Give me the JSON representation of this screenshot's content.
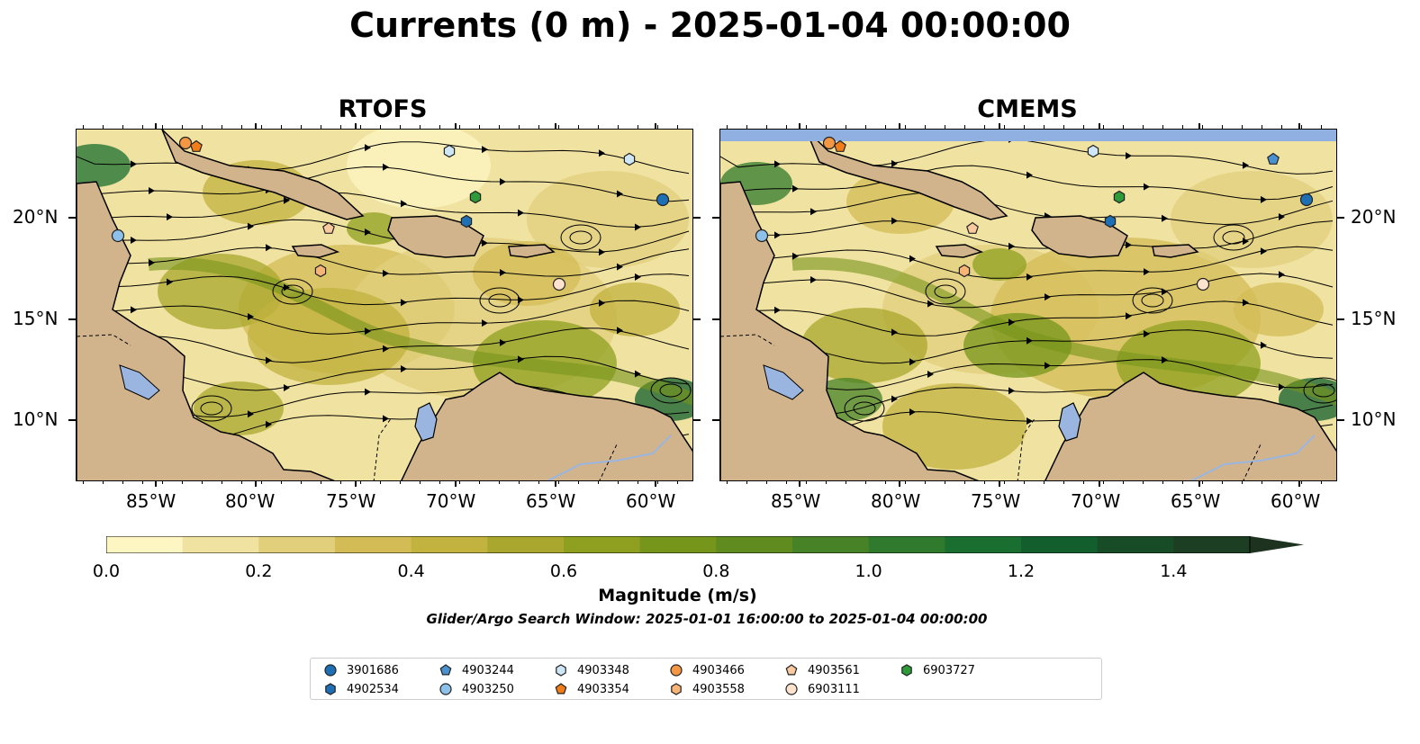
{
  "title": "Currents (0 m) - 2025-01-04 00:00:00",
  "panels": [
    {
      "title": "RTOFS"
    },
    {
      "title": "CMEMS"
    }
  ],
  "axes": {
    "lon_labels": [
      "85°W",
      "80°W",
      "75°W",
      "70°W",
      "65°W",
      "60°W"
    ],
    "lat_labels": [
      "20°N",
      "15°N",
      "10°N"
    ]
  },
  "colorbar": {
    "label": "Magnitude (m/s)",
    "ticks": [
      "0.0",
      "0.2",
      "0.4",
      "0.6",
      "0.8",
      "1.0",
      "1.2",
      "1.4"
    ],
    "range": [
      0.0,
      1.5
    ],
    "extend": "max",
    "colors": [
      "#fdf6c3",
      "#f0e2a0",
      "#e2cf7c",
      "#d3bc55",
      "#c2b23f",
      "#a9a72e",
      "#8fa020",
      "#76951b",
      "#5f8b1f",
      "#478226",
      "#2f7a2c",
      "#1a6f30",
      "#125e2c",
      "#174c26",
      "#1c3e22",
      "#1d3320"
    ]
  },
  "subtitle": "Glider/Argo Search Window: 2025-01-01 16:00:00 to 2025-01-04 00:00:00",
  "legend": [
    {
      "id": "3901686",
      "marker": "circle",
      "color": "#1f6fb4"
    },
    {
      "id": "4902534",
      "marker": "hexagon",
      "color": "#1f6fb4"
    },
    {
      "id": "4903244",
      "marker": "pentagon",
      "color": "#4a92cf"
    },
    {
      "id": "4903250",
      "marker": "circle",
      "color": "#8ec1ea"
    },
    {
      "id": "4903348",
      "marker": "hexagon",
      "color": "#cfe6f7"
    },
    {
      "id": "4903354",
      "marker": "pentagon",
      "color": "#f07d19"
    },
    {
      "id": "4903466",
      "marker": "circle",
      "color": "#f39744"
    },
    {
      "id": "4903558",
      "marker": "hexagon",
      "color": "#f7b477"
    },
    {
      "id": "4903561",
      "marker": "pentagon",
      "color": "#f9c9a0"
    },
    {
      "id": "6903111",
      "marker": "circle",
      "color": "#fde2cd"
    },
    {
      "id": "6903727",
      "marker": "hexagon",
      "color": "#2e9a3a"
    }
  ],
  "colors": {
    "land": "#d2b48c",
    "water_bodies": "#9ab6e0",
    "no_data_band": "#8fb0e0"
  }
}
